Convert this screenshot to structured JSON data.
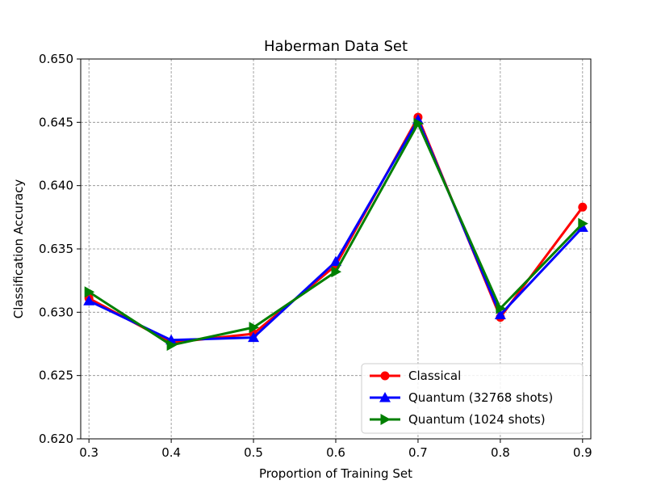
{
  "chart_data": {
    "type": "line",
    "title": "Haberman Data Set",
    "xlabel": "Proportion of Training Set",
    "ylabel": "Classification Accuracy",
    "x": [
      0.3,
      0.4,
      0.5,
      0.6,
      0.7,
      0.8,
      0.9
    ],
    "xlim": [
      0.29,
      0.91
    ],
    "ylim": [
      0.62,
      0.65
    ],
    "xticks": [
      "0.3",
      "0.4",
      "0.5",
      "0.6",
      "0.7",
      "0.8",
      "0.9"
    ],
    "xtick_values": [
      0.3,
      0.4,
      0.5,
      0.6,
      0.7,
      0.8,
      0.9
    ],
    "yticks": [
      "0.620",
      "0.625",
      "0.630",
      "0.635",
      "0.640",
      "0.645",
      "0.650"
    ],
    "ytick_values": [
      0.62,
      0.625,
      0.63,
      0.635,
      0.64,
      0.645,
      0.65
    ],
    "grid": true,
    "legend_position": "lower-right",
    "series": [
      {
        "name": "Classical",
        "color": "#ff0000",
        "marker": "circle",
        "values": [
          0.6311,
          0.6276,
          0.6283,
          0.6337,
          0.6454,
          0.6296,
          0.6383
        ]
      },
      {
        "name": "Quantum (32768 shots)",
        "color": "#0000ff",
        "marker": "triangle-up",
        "values": [
          0.6309,
          0.6278,
          0.628,
          0.634,
          0.6452,
          0.6298,
          0.6367
        ]
      },
      {
        "name": "Quantum (1024 shots)",
        "color": "#007f00",
        "marker": "triangle-right",
        "values": [
          0.6316,
          0.6274,
          0.6288,
          0.6332,
          0.6449,
          0.6303,
          0.637
        ]
      }
    ]
  }
}
